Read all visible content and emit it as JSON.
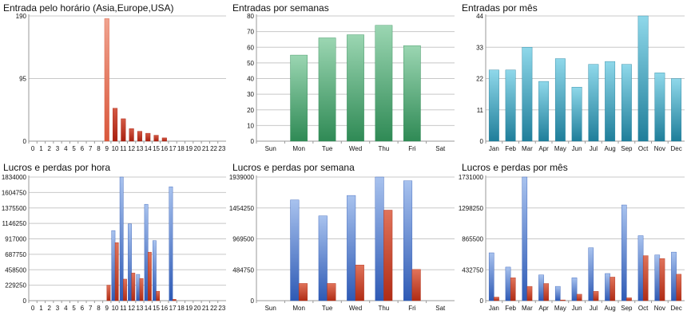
{
  "colors": {
    "orange": [
      "#f0a38f",
      "#d9573b"
    ],
    "darkred": [
      "#d45a45",
      "#a82010"
    ],
    "green": [
      "#9bd6b2",
      "#2f8a55"
    ],
    "teal": [
      "#8fd8ea",
      "#1f7e9a"
    ],
    "blue": [
      "#a8c2ee",
      "#2e5ab5"
    ],
    "red": [
      "#e0735a",
      "#b02c15"
    ],
    "grid": "#c8c8c8",
    "axis": "#9a9a9a",
    "text": "#111111"
  },
  "chart_data": [
    {
      "type": "bar",
      "title": "Entrada pelo horário (Asia,Europe,USA)",
      "categories": [
        "0",
        "1",
        "2",
        "3",
        "4",
        "5",
        "6",
        "7",
        "8",
        "9",
        "10",
        "11",
        "12",
        "13",
        "14",
        "15",
        "16",
        "17",
        "18",
        "19",
        "20",
        "21",
        "22",
        "23"
      ],
      "ylim": [
        0,
        190
      ],
      "yticks": [
        "0",
        "95",
        "190"
      ],
      "series": [
        {
          "values": [
            0,
            0,
            0,
            0,
            0,
            0,
            0,
            0,
            0,
            186,
            50,
            34,
            19,
            15,
            12,
            9,
            5,
            0,
            0,
            0,
            0,
            0,
            0,
            0
          ],
          "gradients": [
            "orange",
            "darkred",
            "darkred",
            "darkred",
            "darkred",
            "darkred",
            "darkred",
            "darkred",
            "darkred",
            "orange",
            "darkred",
            "darkred",
            "darkred",
            "darkred",
            "darkred",
            "darkred",
            "darkred",
            "darkred",
            "darkred",
            "darkred",
            "darkred",
            "darkred",
            "darkred",
            "darkred"
          ]
        }
      ]
    },
    {
      "type": "bar",
      "title": "Entradas por semanas",
      "categories": [
        "Sun",
        "Mon",
        "Tue",
        "Wed",
        "Thu",
        "Fri",
        "Sat"
      ],
      "ylim": [
        0,
        80
      ],
      "yticks": [
        "0",
        "10",
        "20",
        "30",
        "40",
        "50",
        "60",
        "70",
        "80"
      ],
      "series": [
        {
          "values": [
            0,
            55,
            66,
            68,
            74,
            61,
            0
          ],
          "gradient": "green"
        }
      ]
    },
    {
      "type": "bar",
      "title": "Entradas por mês",
      "categories": [
        "Jan",
        "Feb",
        "Mar",
        "Apr",
        "May",
        "Jun",
        "Jul",
        "Aug",
        "Sep",
        "Oct",
        "Nov",
        "Dec"
      ],
      "ylim": [
        0,
        44
      ],
      "yticks": [
        "0",
        "11",
        "22",
        "33",
        "44"
      ],
      "series": [
        {
          "values": [
            25,
            25,
            33,
            21,
            29,
            19,
            27,
            28,
            27,
            44,
            24,
            22
          ],
          "gradient": "teal"
        }
      ]
    },
    {
      "type": "bar",
      "title": "Lucros e perdas por hora",
      "categories": [
        "0",
        "1",
        "2",
        "3",
        "4",
        "5",
        "6",
        "7",
        "8",
        "9",
        "10",
        "11",
        "12",
        "13",
        "14",
        "15",
        "16",
        "17",
        "18",
        "19",
        "20",
        "21",
        "22",
        "23"
      ],
      "ylim": [
        0,
        1834000
      ],
      "yticks": [
        "0",
        "229250",
        "458500",
        "687750",
        "917000",
        "1146250",
        "1375500",
        "1604750",
        "1834000"
      ],
      "series": [
        {
          "values": [
            0,
            0,
            0,
            0,
            0,
            0,
            0,
            0,
            0,
            0,
            1040000,
            1834000,
            1140000,
            390000,
            1430000,
            890000,
            0,
            1690000,
            0,
            0,
            0,
            0,
            0,
            0
          ],
          "gradient": "blue"
        },
        {
          "values": [
            0,
            0,
            0,
            0,
            0,
            0,
            0,
            0,
            0,
            230000,
            860000,
            320000,
            410000,
            330000,
            720000,
            140000,
            0,
            20000,
            0,
            0,
            0,
            0,
            0,
            0
          ],
          "gradient": "red"
        }
      ]
    },
    {
      "type": "bar",
      "title": "Lucros e perdas por semana",
      "categories": [
        "Sun",
        "Mon",
        "Tue",
        "Wed",
        "Thu",
        "Fri",
        "Sat"
      ],
      "ylim": [
        0,
        1939000
      ],
      "yticks": [
        "0",
        "484750",
        "969500",
        "1454250",
        "1939000"
      ],
      "series": [
        {
          "values": [
            0,
            1580000,
            1330000,
            1650000,
            1939000,
            1880000,
            0
          ],
          "gradient": "blue"
        },
        {
          "values": [
            0,
            270000,
            270000,
            560000,
            1420000,
            490000,
            0
          ],
          "gradient": "red"
        }
      ]
    },
    {
      "type": "bar",
      "title": "Lucros e perdas por mês",
      "categories": [
        "Jan",
        "Feb",
        "Mar",
        "Apr",
        "May",
        "Jun",
        "Jul",
        "Aug",
        "Sep",
        "Oct",
        "Nov",
        "Dec"
      ],
      "ylim": [
        0,
        1731000
      ],
      "yticks": [
        "0",
        "432750",
        "865500",
        "1298250",
        "1731000"
      ],
      "series": [
        {
          "values": [
            670000,
            470000,
            1731000,
            360000,
            200000,
            320000,
            740000,
            380000,
            1340000,
            910000,
            640000,
            680000
          ],
          "gradient": "blue"
        },
        {
          "values": [
            50000,
            320000,
            200000,
            240000,
            10000,
            90000,
            130000,
            330000,
            40000,
            630000,
            590000,
            370000
          ],
          "gradient": "red"
        }
      ]
    }
  ]
}
